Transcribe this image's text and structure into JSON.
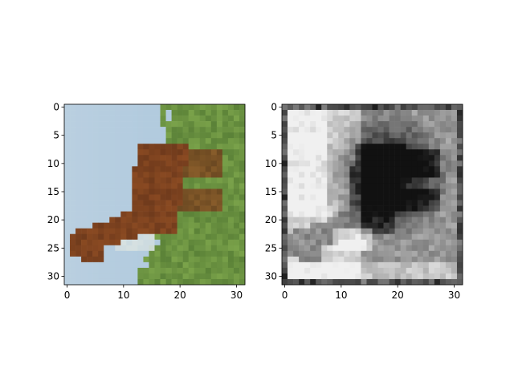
{
  "figure": {
    "background": "#ffffff",
    "panel_count": 2
  },
  "chart_data": [
    {
      "type": "image",
      "title": "",
      "xlabel": "",
      "ylabel": "",
      "xlim": [
        -0.5,
        31.5
      ],
      "ylim": [
        31.5,
        -0.5
      ],
      "x_ticks": [
        0,
        10,
        20,
        30
      ],
      "y_ticks": [
        0,
        5,
        10,
        15,
        20,
        25,
        30
      ],
      "image_size": [
        32,
        32
      ],
      "colormap": "rgb",
      "content": "pixelated color photo of a brown horse rotated sideways on green grass under pale blue sky",
      "colors": {
        "sky": "#aac6dc",
        "horse": "#8a4a22",
        "horse_dark": "#5e3018",
        "grass": "#7aa24a",
        "grass_dark": "#4e7430"
      }
    },
    {
      "type": "image",
      "title": "",
      "xlabel": "",
      "ylabel": "",
      "xlim": [
        -0.5,
        31.5
      ],
      "ylim": [
        31.5,
        -0.5
      ],
      "x_ticks": [
        0,
        10,
        20,
        30
      ],
      "y_ticks": [
        0,
        5,
        10,
        15,
        20,
        25,
        30
      ],
      "image_size": [
        32,
        32
      ],
      "colormap": "gray",
      "content": "grayscale saliency-style map of the same scene",
      "colors": {
        "light": "#f0f0f0",
        "dark": "#111111"
      }
    }
  ]
}
